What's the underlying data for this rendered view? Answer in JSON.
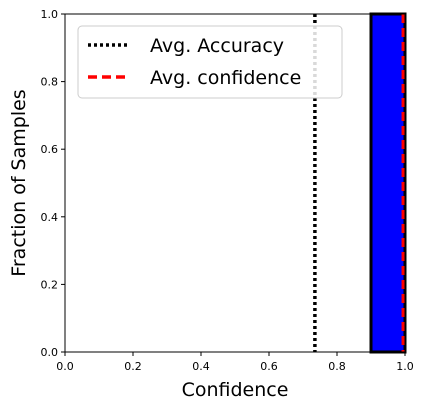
{
  "chart_data": {
    "type": "bar",
    "xlabel": "Confidence",
    "ylabel": "Fraction of Samples",
    "xlim": [
      0.0,
      1.0
    ],
    "ylim": [
      0.0,
      1.0
    ],
    "xticks": [
      "0.0",
      "0.2",
      "0.4",
      "0.6",
      "0.8",
      "1.0"
    ],
    "yticks": [
      "0.0",
      "0.2",
      "0.4",
      "0.6",
      "0.8",
      "1.0"
    ],
    "grid": false,
    "bins": [
      {
        "x0": 0.0,
        "x1": 0.1,
        "value": 0.0
      },
      {
        "x0": 0.1,
        "x1": 0.2,
        "value": 0.0
      },
      {
        "x0": 0.2,
        "x1": 0.3,
        "value": 0.0
      },
      {
        "x0": 0.3,
        "x1": 0.4,
        "value": 0.0
      },
      {
        "x0": 0.4,
        "x1": 0.5,
        "value": 0.0
      },
      {
        "x0": 0.5,
        "x1": 0.6,
        "value": 0.0
      },
      {
        "x0": 0.6,
        "x1": 0.7,
        "value": 0.0
      },
      {
        "x0": 0.7,
        "x1": 0.8,
        "value": 0.0
      },
      {
        "x0": 0.8,
        "x1": 0.9,
        "value": 0.0
      },
      {
        "x0": 0.9,
        "x1": 1.0,
        "value": 1.0
      }
    ],
    "bar_color": "#0000ff",
    "bar_edge_color": "#000000",
    "vlines": [
      {
        "name": "Avg. Accuracy",
        "x": 0.735,
        "style": "dotted",
        "color": "#000000"
      },
      {
        "name": "Avg. confidence",
        "x": 0.995,
        "style": "dashed",
        "color": "#ff0000"
      }
    ],
    "legend": {
      "placement": "top-left",
      "entries": [
        "Avg. Accuracy",
        "Avg. confidence"
      ]
    }
  }
}
